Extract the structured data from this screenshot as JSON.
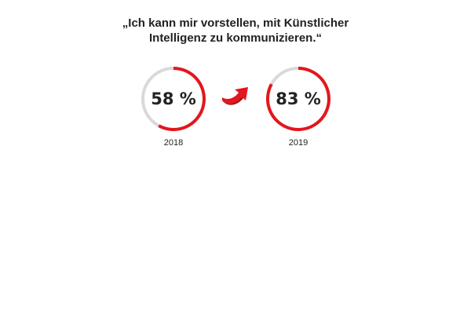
{
  "header": {
    "title_line1": "„Ich kann mir vorstellen, mit Künstlicher",
    "title_line2": "Intelligenz zu kommunizieren.“"
  },
  "chart_data": {
    "type": "donut",
    "title": "„Ich kann mir vorstellen, mit Künstlicher Intelligenz zu kommunizieren.“",
    "categories": [
      "2018",
      "2019"
    ],
    "values": [
      58,
      83
    ],
    "labels": [
      "58 %",
      "83 %"
    ],
    "unit": "%",
    "ylim": [
      0,
      100
    ],
    "colors": {
      "filled": "#e4161e",
      "track": "#d9d9d9",
      "arrow": "#e4161e",
      "text": "#222222"
    },
    "annotations": [
      "arrow-up-right-icon"
    ]
  }
}
